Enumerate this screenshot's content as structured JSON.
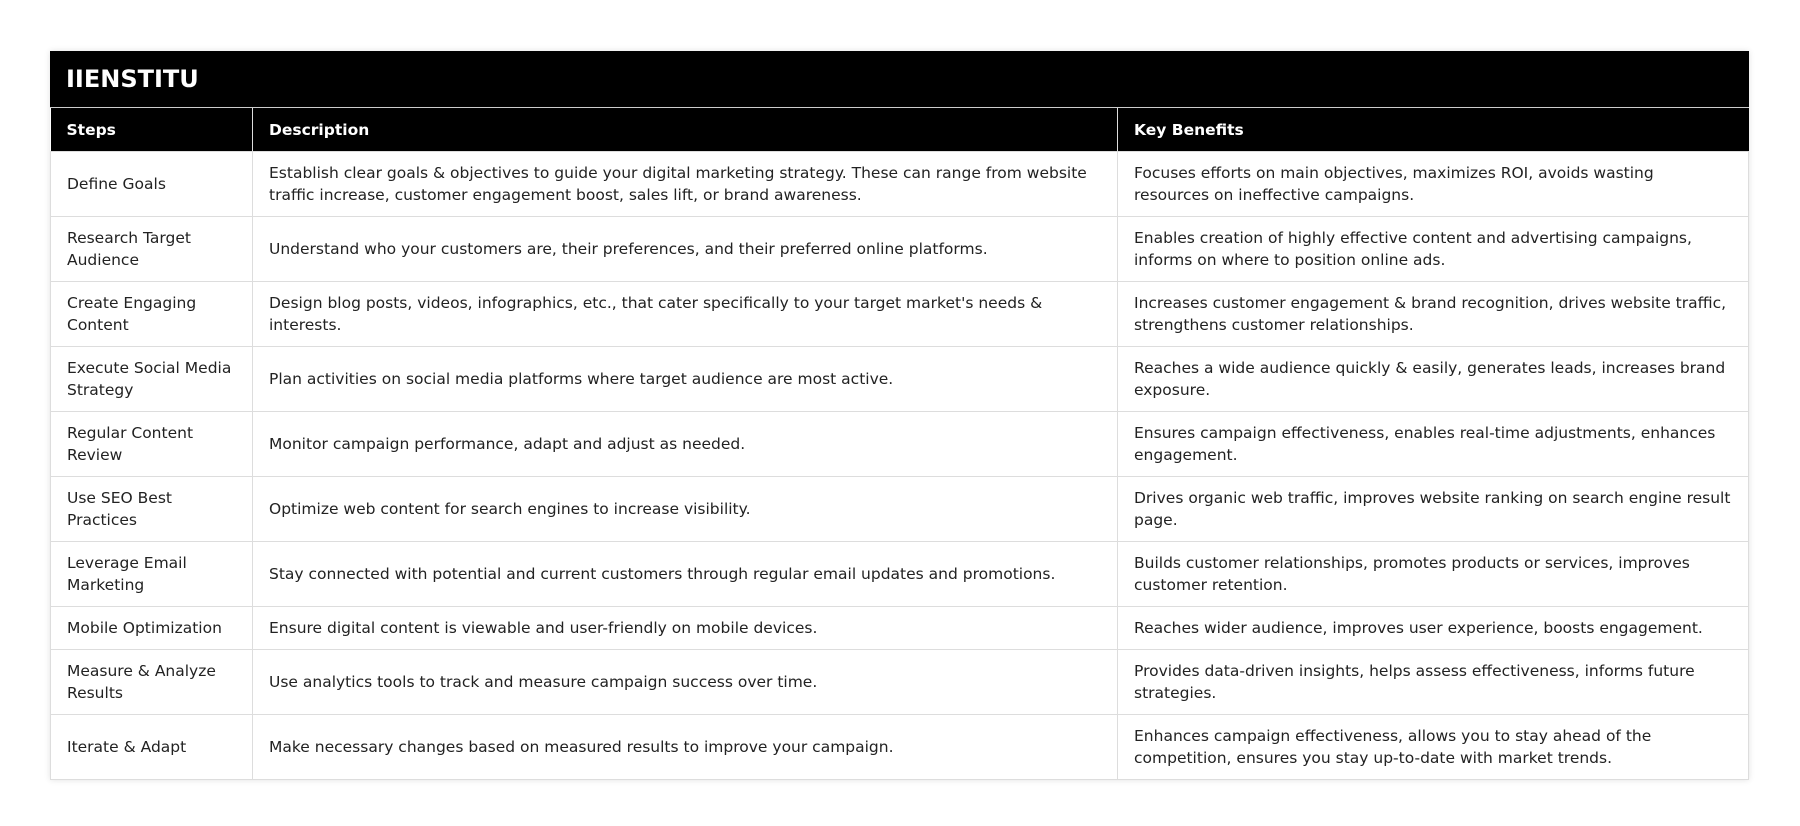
{
  "title": "IIENSTITU",
  "columns": [
    "Steps",
    "Description",
    "Key Benefits"
  ],
  "rows": [
    {
      "step": "Define Goals",
      "description": "Establish clear goals & objectives to guide your digital marketing strategy. These can range from website traffic increase, customer engagement boost, sales lift, or brand awareness.",
      "benefits": "Focuses efforts on main objectives, maximizes ROI, avoids wasting resources on ineffective campaigns."
    },
    {
      "step": "Research Target Audience",
      "description": "Understand who your customers are, their preferences, and their preferred online platforms.",
      "benefits": "Enables creation of highly effective content and advertising campaigns, informs on where to position online ads."
    },
    {
      "step": "Create Engaging Content",
      "description": "Design blog posts, videos, infographics, etc., that cater specifically to your target market's needs & interests.",
      "benefits": "Increases customer engagement & brand recognition, drives website traffic, strengthens customer relationships."
    },
    {
      "step": "Execute Social Media Strategy",
      "description": "Plan activities on social media platforms where target audience are most active.",
      "benefits": "Reaches a wide audience quickly & easily, generates leads, increases brand exposure."
    },
    {
      "step": "Regular Content Review",
      "description": "Monitor campaign performance, adapt and adjust as needed.",
      "benefits": "Ensures campaign effectiveness, enables real-time adjustments, enhances engagement."
    },
    {
      "step": "Use SEO Best Practices",
      "description": "Optimize web content for search engines to increase visibility.",
      "benefits": "Drives organic web traffic, improves website ranking on search engine result page."
    },
    {
      "step": "Leverage Email Marketing",
      "description": "Stay connected with potential and current customers through regular email updates and promotions.",
      "benefits": "Builds customer relationships, promotes products or services, improves customer retention."
    },
    {
      "step": "Mobile Optimization",
      "description": "Ensure digital content is viewable and user-friendly on mobile devices.",
      "benefits": "Reaches wider audience, improves user experience, boosts engagement."
    },
    {
      "step": "Measure & Analyze Results",
      "description": "Use analytics tools to track and measure campaign success over time.",
      "benefits": "Provides data-driven insights, helps assess effectiveness, informs future strategies."
    },
    {
      "step": "Iterate & Adapt",
      "description": "Make necessary changes based on measured results to improve your campaign.",
      "benefits": "Enhances campaign effectiveness, allows you to stay ahead of the competition, ensures you stay up-to-date with market trends."
    }
  ]
}
